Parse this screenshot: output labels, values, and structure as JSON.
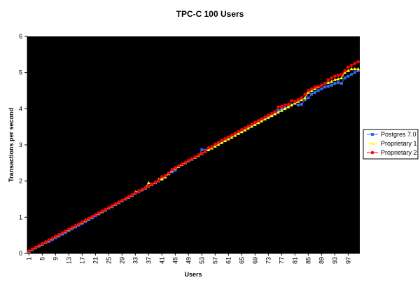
{
  "chart_data": {
    "type": "line",
    "title": "TPC-C 100 Users",
    "xlabel": "Users",
    "ylabel": "Transactions per second",
    "ylim": [
      0,
      6
    ],
    "yticks": [
      0,
      1,
      2,
      3,
      4,
      5,
      6
    ],
    "xticks": [
      "1",
      "5",
      "9",
      "13",
      "17",
      "21",
      "25",
      "29",
      "33",
      "37",
      "41",
      "45",
      "49",
      "53",
      "57",
      "61",
      "65",
      "69",
      "73",
      "77",
      "81",
      "85",
      "89",
      "93",
      "97"
    ],
    "grid": false,
    "background": "#000000",
    "legend_position": "right",
    "x_start": 1,
    "x_step": 1,
    "series": [
      {
        "name": "Postgres 7.0",
        "color": "#3366ff",
        "marker": "square",
        "values": [
          0.05,
          0.1,
          0.15,
          0.2,
          0.25,
          0.3,
          0.33,
          0.38,
          0.43,
          0.48,
          0.53,
          0.58,
          0.63,
          0.68,
          0.73,
          0.78,
          0.83,
          0.88,
          0.93,
          0.98,
          1.04,
          1.09,
          1.14,
          1.19,
          1.25,
          1.29,
          1.35,
          1.4,
          1.45,
          1.5,
          1.55,
          1.6,
          1.65,
          1.7,
          1.75,
          1.8,
          1.85,
          1.9,
          1.95,
          2.0,
          2.05,
          2.15,
          2.2,
          2.25,
          2.3,
          2.4,
          2.45,
          2.5,
          2.55,
          2.6,
          2.65,
          2.7,
          2.87,
          2.85,
          2.9,
          2.95,
          3.0,
          3.05,
          3.1,
          3.15,
          3.2,
          3.25,
          3.3,
          3.35,
          3.4,
          3.45,
          3.5,
          3.55,
          3.6,
          3.65,
          3.7,
          3.72,
          3.75,
          3.8,
          3.85,
          3.95,
          4.0,
          4.02,
          4.05,
          4.1,
          4.15,
          4.1,
          4.12,
          4.25,
          4.3,
          4.4,
          4.45,
          4.5,
          4.55,
          4.6,
          4.62,
          4.65,
          4.7,
          4.72,
          4.7,
          4.85,
          4.9,
          4.95,
          5.0,
          5.05
        ]
      },
      {
        "name": "Proprietary 1",
        "color": "#ffff00",
        "marker": "triangle",
        "values": [
          0.06,
          0.11,
          0.16,
          0.21,
          0.26,
          0.31,
          0.36,
          0.41,
          0.46,
          0.51,
          0.56,
          0.61,
          0.66,
          0.71,
          0.76,
          0.81,
          0.86,
          0.91,
          0.96,
          1.01,
          1.06,
          1.11,
          1.16,
          1.21,
          1.26,
          1.31,
          1.36,
          1.41,
          1.46,
          1.51,
          1.56,
          1.61,
          1.7,
          1.73,
          1.76,
          1.81,
          1.95,
          1.91,
          1.96,
          2.05,
          2.06,
          2.11,
          2.2,
          2.3,
          2.35,
          2.4,
          2.46,
          2.51,
          2.56,
          2.61,
          2.66,
          2.71,
          2.76,
          2.81,
          2.86,
          2.91,
          2.96,
          3.01,
          3.06,
          3.11,
          3.16,
          3.21,
          3.26,
          3.31,
          3.36,
          3.41,
          3.46,
          3.51,
          3.56,
          3.61,
          3.66,
          3.71,
          3.76,
          3.81,
          3.86,
          3.9,
          3.95,
          4.0,
          4.05,
          4.1,
          4.15,
          4.2,
          4.25,
          4.3,
          4.45,
          4.5,
          4.55,
          4.6,
          4.65,
          4.7,
          4.72,
          4.75,
          4.8,
          4.82,
          4.85,
          5.0,
          5.05,
          5.1,
          5.1,
          5.1
        ]
      },
      {
        "name": "Proprietary 2",
        "color": "#ff0000",
        "marker": "circle",
        "values": [
          0.07,
          0.12,
          0.17,
          0.22,
          0.27,
          0.32,
          0.37,
          0.42,
          0.47,
          0.52,
          0.57,
          0.62,
          0.67,
          0.72,
          0.77,
          0.82,
          0.87,
          0.92,
          0.97,
          1.02,
          1.07,
          1.12,
          1.17,
          1.22,
          1.27,
          1.32,
          1.37,
          1.42,
          1.47,
          1.52,
          1.57,
          1.62,
          1.67,
          1.72,
          1.77,
          1.82,
          1.87,
          1.92,
          1.97,
          2.02,
          2.12,
          2.15,
          2.22,
          2.32,
          2.37,
          2.42,
          2.47,
          2.52,
          2.57,
          2.62,
          2.67,
          2.72,
          2.77,
          2.82,
          2.92,
          2.95,
          3.02,
          3.07,
          3.12,
          3.17,
          3.22,
          3.27,
          3.32,
          3.37,
          3.42,
          3.47,
          3.52,
          3.57,
          3.62,
          3.67,
          3.72,
          3.77,
          3.82,
          3.87,
          3.92,
          4.05,
          4.07,
          4.1,
          4.12,
          4.22,
          4.2,
          4.25,
          4.3,
          4.4,
          4.5,
          4.55,
          4.6,
          4.62,
          4.65,
          4.7,
          4.8,
          4.85,
          4.9,
          4.92,
          4.95,
          5.05,
          5.15,
          5.2,
          5.25,
          5.3
        ]
      }
    ]
  }
}
